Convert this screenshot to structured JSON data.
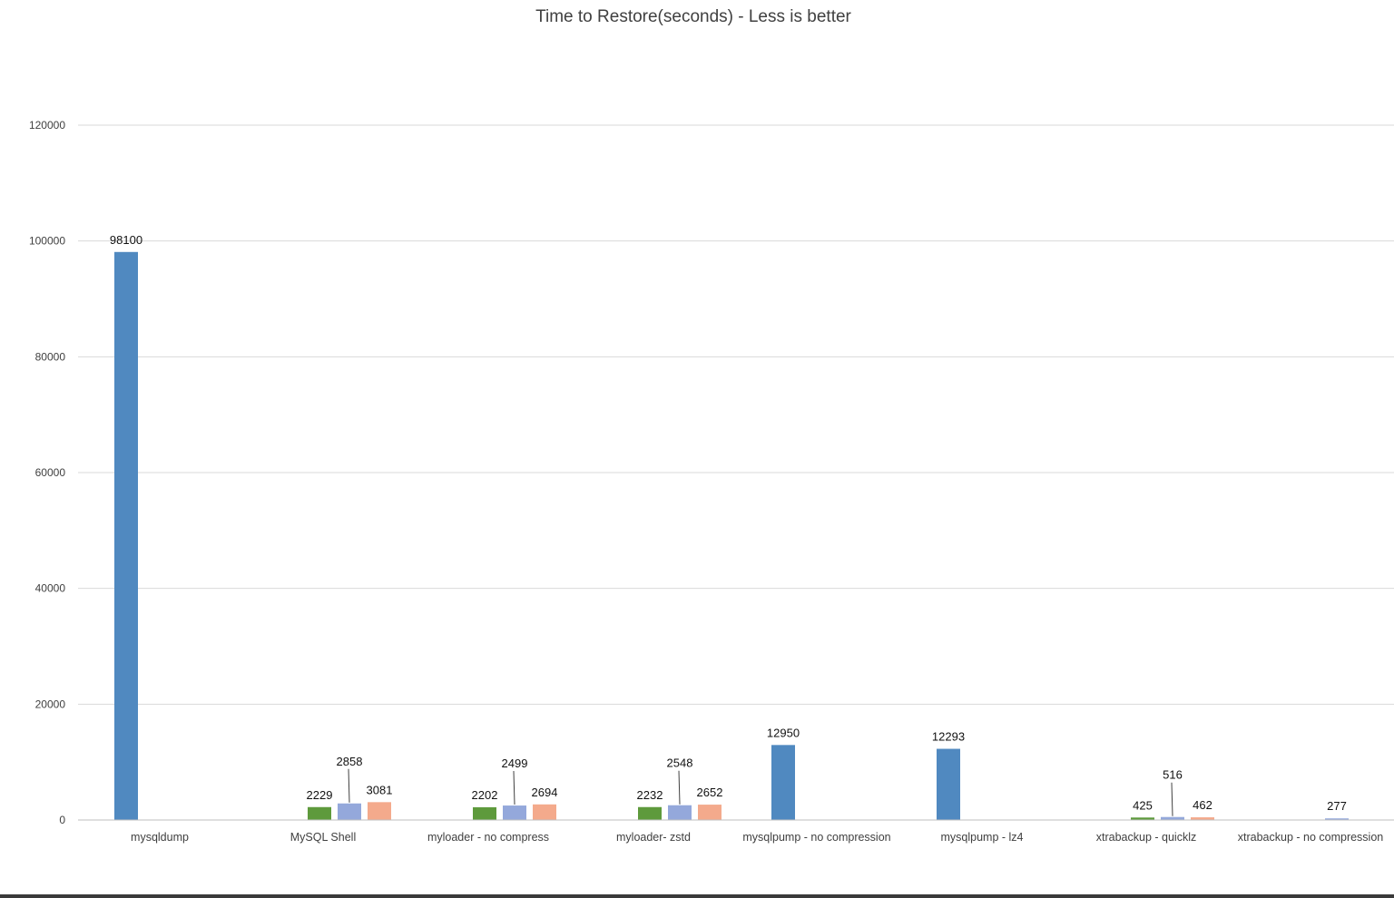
{
  "chart_data": {
    "type": "bar",
    "title": "Time to Restore(seconds) - Less is better",
    "xlabel": "",
    "ylabel": "",
    "ylim": [
      0,
      120000
    ],
    "yticks": [
      "0",
      "20000",
      "40000",
      "60000",
      "80000",
      "100000",
      "120000"
    ],
    "grid": true,
    "legend_position": "bottom",
    "categories": [
      "mysqldump",
      "MySQL Shell",
      "myloader - no compress",
      "myloader- zstd",
      "mysqlpump - no compression",
      "mysqlpump - lz4",
      "xtrabackup - quicklz",
      "xtrabackup - no compression"
    ],
    "series": [
      {
        "name": "",
        "color": "#5089c0",
        "values": [
          98100,
          null,
          null,
          null,
          12950,
          12293,
          null,
          null
        ]
      },
      {
        "name": "",
        "color": "#5e9a3c",
        "values": [
          null,
          2229,
          2202,
          2232,
          null,
          null,
          425,
          null
        ]
      },
      {
        "name": "",
        "color": "#94a8db",
        "values": [
          null,
          2858,
          2499,
          2548,
          null,
          null,
          516,
          277
        ]
      },
      {
        "name": "",
        "color": "#f4aa8c",
        "values": [
          null,
          3081,
          2694,
          2652,
          null,
          null,
          462,
          null
        ]
      }
    ]
  }
}
